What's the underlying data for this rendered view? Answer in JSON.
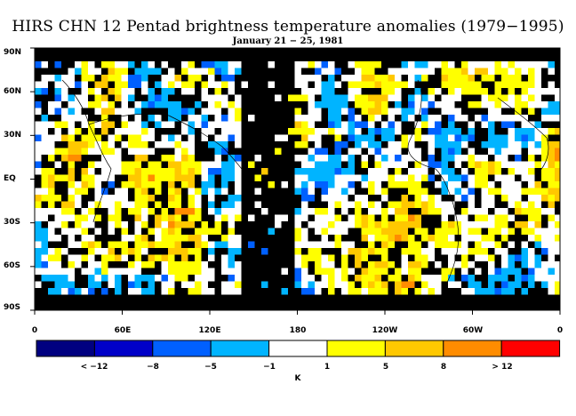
{
  "title": "HIRS CHN 12 Pentad brightness temperature anomalies (1979−1995)",
  "subtitle": "January 21 − 25, 1981",
  "axes": {
    "y_ticks": [
      "90N",
      "60N",
      "30N",
      "EQ",
      "30S",
      "60S",
      "90S"
    ],
    "x_ticks": [
      "0",
      "60E",
      "120E",
      "180",
      "120W",
      "60W",
      "0"
    ]
  },
  "colorbar": {
    "colors": [
      "#000080",
      "#0000c8",
      "#0060ff",
      "#00b4ff",
      "#ffffff",
      "#ffff00",
      "#ffc800",
      "#ff8c00",
      "#ff0000"
    ],
    "labels": [
      "< −12",
      "−8",
      "−5",
      "−1",
      "1",
      "5",
      "8",
      "> 12"
    ],
    "unit": "K"
  },
  "map": {
    "background": "#000000",
    "no_data_color": "#000000",
    "coastline_color": "#000000"
  }
}
